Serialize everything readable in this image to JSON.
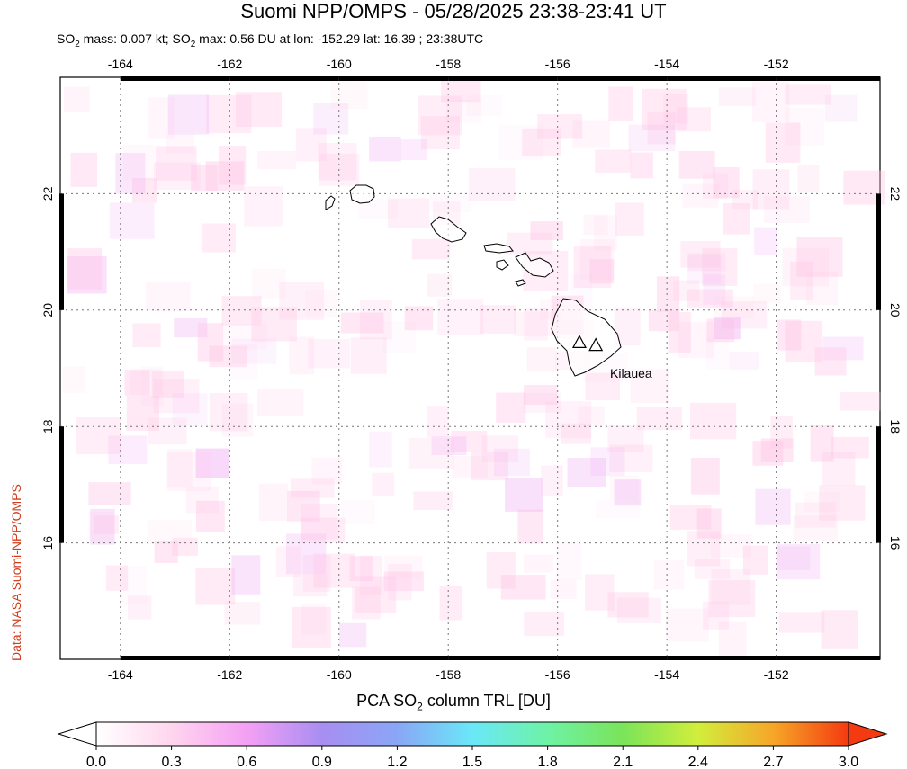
{
  "title": "Suomi NPP/OMPS - 05/28/2025 23:38-23:41 UT",
  "subtitle": {
    "so2": "SO",
    "sub2": "2",
    "mass_text": " mass: 0.007 kt; SO",
    "max_text": " max: 0.56 DU at lon: -152.29 lat: 16.39 ; 23:38UTC"
  },
  "credit": "Data: NASA Suomi-NPP/OMPS",
  "map": {
    "lon_ticks": [
      "-164",
      "-162",
      "-160",
      "-158",
      "-156",
      "-154",
      "-152"
    ],
    "lon_values": [
      -164,
      -162,
      -160,
      -158,
      -156,
      -154,
      -152
    ],
    "lat_ticks": [
      "22",
      "20",
      "18",
      "16"
    ],
    "lat_values": [
      22,
      20,
      18,
      16
    ],
    "lon_range": [
      -165.1,
      -150.1
    ],
    "lat_range": [
      14.0,
      24.0
    ],
    "volcano_label": "Kilauea",
    "volcanoes": [
      {
        "lon": -155.6,
        "lat": 19.45
      },
      {
        "lon": -155.3,
        "lat": 19.4
      }
    ],
    "grid": "dotted"
  },
  "colorbar": {
    "label_prefix": "PCA SO",
    "label_sub": "2",
    "label_suffix": " column TRL [DU]",
    "ticks": [
      "0.0",
      "0.3",
      "0.6",
      "0.9",
      "1.2",
      "1.5",
      "1.8",
      "2.1",
      "2.4",
      "2.7",
      "3.0"
    ],
    "range": [
      0.0,
      3.0
    ],
    "colors": [
      "#ffffff",
      "#ffd6ee",
      "#f4a0f4",
      "#a88ef2",
      "#8aa6f6",
      "#6ae8f8",
      "#6ef2a6",
      "#7ae45a",
      "#d2ee3c",
      "#f6a628",
      "#f43a10"
    ]
  }
}
